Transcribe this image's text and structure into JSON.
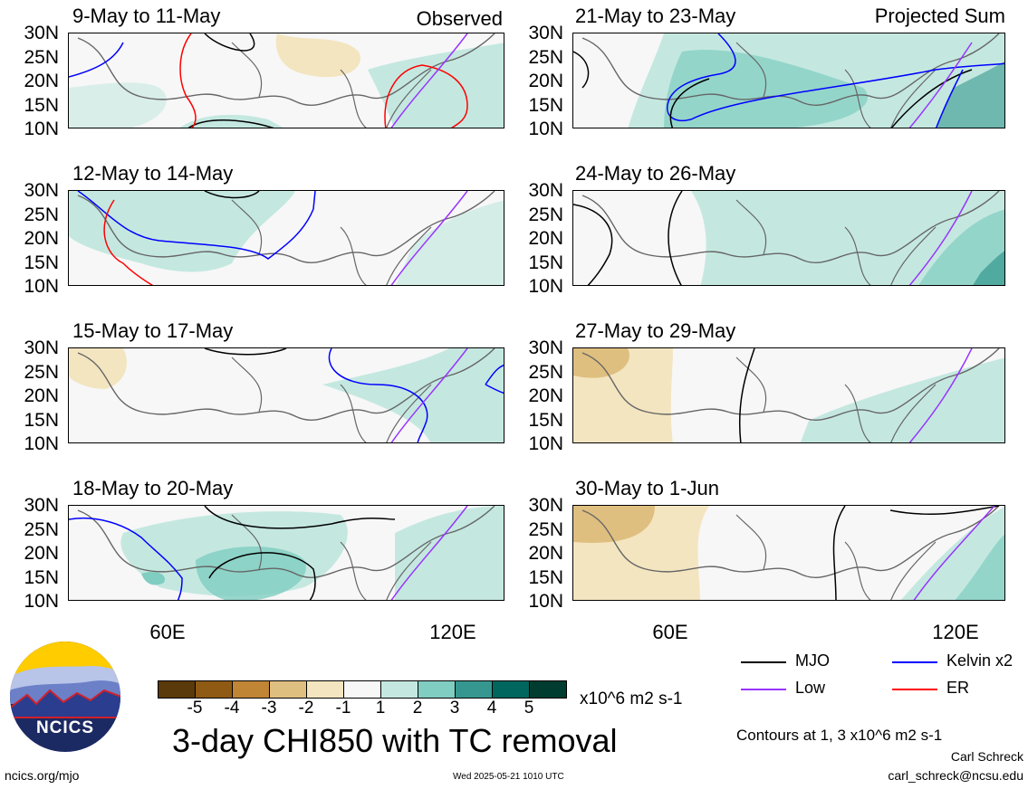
{
  "header": {
    "observed_label": "Observed",
    "projected_label": "Projected Sum"
  },
  "panels_left": [
    {
      "title": "9-May to 11-May"
    },
    {
      "title": "12-May to 14-May"
    },
    {
      "title": "15-May to 17-May"
    },
    {
      "title": "18-May to 20-May"
    }
  ],
  "panels_right": [
    {
      "title": "21-May to 23-May"
    },
    {
      "title": "24-May to 26-May"
    },
    {
      "title": "27-May to 29-May"
    },
    {
      "title": "30-May to 1-Jun"
    }
  ],
  "y_ticks": [
    "30N",
    "25N",
    "20N",
    "15N",
    "10N"
  ],
  "x_ticks": [
    "60E",
    "120E"
  ],
  "colorbar": {
    "colors": [
      "#5a3a0a",
      "#8f5a14",
      "#c08535",
      "#dfbf7f",
      "#f3e5c0",
      "#f7f7f7",
      "#c4e8e0",
      "#80cdc1",
      "#35978f",
      "#01665e",
      "#003c30"
    ],
    "labels": [
      "-5",
      "-4",
      "-3",
      "-2",
      "-1",
      "1",
      "2",
      "3",
      "4",
      "5"
    ],
    "units": "x10^6 m2 s-1"
  },
  "main_title": "3-day CHI850 with TC removal",
  "legend": [
    {
      "name": "MJO",
      "color": "#000000"
    },
    {
      "name": "Kelvin x2",
      "color": "#0000ff"
    },
    {
      "name": "Low",
      "color": "#9933ff"
    },
    {
      "name": "ER",
      "color": "#ff0000"
    }
  ],
  "contours_note": "Contours at 1, 3 x10^6 m2 s-1",
  "author": "Carl Schreck",
  "email": "carl_schreck@ncsu.edu",
  "site": "ncics.org/mjo",
  "timestamp": "Wed 2025-05-21 1010 UTC",
  "logo_text": "NCICS"
}
